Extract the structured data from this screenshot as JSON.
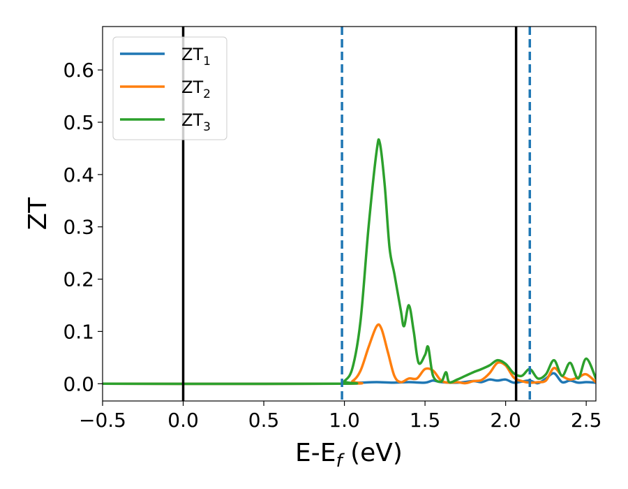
{
  "chart_data": {
    "type": "line",
    "xlabel": "E-E",
    "xlabel_sub": "f",
    "xlabel_unit": "(eV)",
    "ylabel": "ZT",
    "xlim": [
      -0.5,
      2.56
    ],
    "ylim": [
      -0.033,
      0.683
    ],
    "x_ticks": [
      -0.5,
      0.0,
      0.5,
      1.0,
      1.5,
      2.0,
      2.5
    ],
    "x_tick_labels": [
      "−0.5",
      "0.0",
      "0.5",
      "1.0",
      "1.5",
      "2.0",
      "2.5"
    ],
    "y_ticks": [
      0.0,
      0.1,
      0.2,
      0.3,
      0.4,
      0.5,
      0.6
    ],
    "y_tick_labels": [
      "0.0",
      "0.1",
      "0.2",
      "0.3",
      "0.4",
      "0.5",
      "0.6"
    ],
    "grid": false,
    "legend_position": "top-left",
    "vlines": [
      {
        "x": 0.0,
        "style": "solid",
        "color": "#000000"
      },
      {
        "x": 2.065,
        "style": "solid",
        "color": "#000000"
      },
      {
        "x": 0.985,
        "style": "dashed",
        "color": "#1f77b4"
      },
      {
        "x": 2.15,
        "style": "dashed",
        "color": "#1f77b4"
      }
    ],
    "series": [
      {
        "name": "ZT",
        "name_sub": "1",
        "color": "#1f77b4",
        "points": [
          [
            -0.5,
            0.0
          ],
          [
            0.9,
            0.0
          ],
          [
            1.0,
            0.001
          ],
          [
            1.1,
            0.002
          ],
          [
            1.2,
            0.003
          ],
          [
            1.3,
            0.002
          ],
          [
            1.4,
            0.003
          ],
          [
            1.5,
            0.002
          ],
          [
            1.55,
            0.006
          ],
          [
            1.6,
            0.003
          ],
          [
            1.7,
            0.002
          ],
          [
            1.8,
            0.005
          ],
          [
            1.85,
            0.003
          ],
          [
            1.9,
            0.008
          ],
          [
            1.95,
            0.006
          ],
          [
            2.0,
            0.008
          ],
          [
            2.05,
            0.002
          ],
          [
            2.1,
            0.004
          ],
          [
            2.15,
            0.006
          ],
          [
            2.2,
            0.001
          ],
          [
            2.25,
            0.01
          ],
          [
            2.3,
            0.02
          ],
          [
            2.35,
            0.003
          ],
          [
            2.4,
            0.006
          ],
          [
            2.45,
            0.002
          ],
          [
            2.5,
            0.003
          ],
          [
            2.56,
            0.002
          ]
        ]
      },
      {
        "name": "ZT",
        "name_sub": "2",
        "color": "#ff7f0e",
        "points": [
          [
            -0.5,
            0.0
          ],
          [
            0.98,
            0.0
          ],
          [
            1.05,
            0.005
          ],
          [
            1.1,
            0.025
          ],
          [
            1.15,
            0.07
          ],
          [
            1.2,
            0.11
          ],
          [
            1.23,
            0.105
          ],
          [
            1.27,
            0.06
          ],
          [
            1.31,
            0.015
          ],
          [
            1.35,
            0.003
          ],
          [
            1.4,
            0.01
          ],
          [
            1.45,
            0.01
          ],
          [
            1.5,
            0.028
          ],
          [
            1.55,
            0.025
          ],
          [
            1.6,
            0.006
          ],
          [
            1.65,
            0.002
          ],
          [
            1.7,
            0.003
          ],
          [
            1.75,
            0.001
          ],
          [
            1.8,
            0.005
          ],
          [
            1.85,
            0.007
          ],
          [
            1.9,
            0.02
          ],
          [
            1.95,
            0.04
          ],
          [
            2.0,
            0.035
          ],
          [
            2.05,
            0.012
          ],
          [
            2.1,
            0.005
          ],
          [
            2.15,
            0.002
          ],
          [
            2.2,
            0.003
          ],
          [
            2.25,
            0.006
          ],
          [
            2.3,
            0.03
          ],
          [
            2.35,
            0.015
          ],
          [
            2.4,
            0.008
          ],
          [
            2.45,
            0.012
          ],
          [
            2.5,
            0.018
          ],
          [
            2.56,
            0.003
          ]
        ]
      },
      {
        "name": "ZT",
        "name_sub": "3",
        "color": "#2ca02c",
        "points": [
          [
            -0.5,
            0.0
          ],
          [
            0.96,
            0.0
          ],
          [
            1.0,
            0.005
          ],
          [
            1.05,
            0.03
          ],
          [
            1.1,
            0.12
          ],
          [
            1.15,
            0.3
          ],
          [
            1.2,
            0.445
          ],
          [
            1.22,
            0.46
          ],
          [
            1.25,
            0.38
          ],
          [
            1.28,
            0.26
          ],
          [
            1.31,
            0.21
          ],
          [
            1.35,
            0.14
          ],
          [
            1.37,
            0.11
          ],
          [
            1.4,
            0.15
          ],
          [
            1.43,
            0.1
          ],
          [
            1.46,
            0.04
          ],
          [
            1.5,
            0.055
          ],
          [
            1.52,
            0.07
          ],
          [
            1.55,
            0.015
          ],
          [
            1.6,
            0.004
          ],
          [
            1.63,
            0.022
          ],
          [
            1.65,
            0.003
          ],
          [
            1.7,
            0.008
          ],
          [
            1.75,
            0.015
          ],
          [
            1.8,
            0.022
          ],
          [
            1.85,
            0.028
          ],
          [
            1.9,
            0.035
          ],
          [
            1.95,
            0.045
          ],
          [
            2.0,
            0.038
          ],
          [
            2.05,
            0.02
          ],
          [
            2.1,
            0.015
          ],
          [
            2.15,
            0.028
          ],
          [
            2.2,
            0.01
          ],
          [
            2.25,
            0.018
          ],
          [
            2.3,
            0.045
          ],
          [
            2.35,
            0.015
          ],
          [
            2.4,
            0.04
          ],
          [
            2.45,
            0.01
          ],
          [
            2.5,
            0.048
          ],
          [
            2.56,
            0.01
          ]
        ]
      }
    ]
  }
}
